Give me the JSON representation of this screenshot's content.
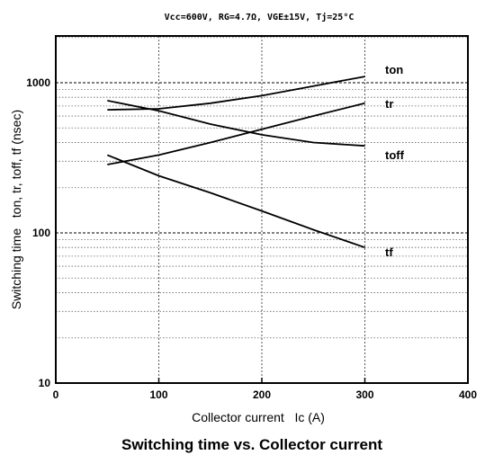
{
  "chart_data": {
    "type": "line",
    "title": "Switching time vs. Collector current",
    "conditions": "Vcc=600V, RG=4.7Ω, VGE±15V, Tj=25°C",
    "xlabel": "Collector current   Ic (A)",
    "ylabel": "Switching time   ton, tr, toff, tf (nsec)",
    "xlim": [
      0,
      400
    ],
    "ylim": [
      10,
      2000
    ],
    "yscale": "log",
    "grid": true,
    "xticks": [
      "0",
      "100",
      "200",
      "300",
      "400"
    ],
    "yticks": [
      "10",
      "100",
      "1000"
    ],
    "series": [
      {
        "name": "ton",
        "x": [
          50,
          100,
          150,
          200,
          250,
          300
        ],
        "y": [
          660,
          670,
          730,
          820,
          950,
          1100
        ]
      },
      {
        "name": "tr",
        "x": [
          50,
          100,
          150,
          200,
          250,
          300
        ],
        "y": [
          285,
          330,
          400,
          490,
          600,
          730
        ]
      },
      {
        "name": "toff",
        "x": [
          50,
          100,
          150,
          200,
          250,
          300
        ],
        "y": [
          760,
          650,
          530,
          450,
          400,
          380
        ]
      },
      {
        "name": "tf",
        "x": [
          50,
          100,
          150,
          200,
          250,
          300
        ],
        "y": [
          330,
          240,
          185,
          140,
          105,
          80
        ]
      }
    ]
  }
}
